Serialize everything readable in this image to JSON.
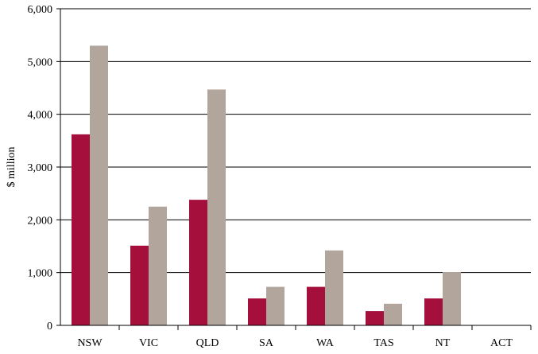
{
  "chart_data": {
    "type": "bar",
    "title": "",
    "xlabel": "",
    "ylabel": "$ million",
    "ylim": [
      0,
      6000
    ],
    "yticks": [
      0,
      1000,
      2000,
      3000,
      4000,
      5000,
      6000
    ],
    "ytick_labels": [
      "0",
      "1,000",
      "2,000",
      "3,000",
      "4,000",
      "5,000",
      "6,000"
    ],
    "grid": true,
    "legend": "none",
    "categories": [
      "NSW",
      "VIC",
      "QLD",
      "SA",
      "WA",
      "TAS",
      "NT",
      "ACT"
    ],
    "series": [
      {
        "color": "#a50f3c",
        "values": [
          3620,
          1510,
          2380,
          510,
          730,
          270,
          510,
          0
        ]
      },
      {
        "color": "#b1a59c",
        "values": [
          5300,
          2250,
          4470,
          730,
          1420,
          410,
          1010,
          0
        ]
      }
    ]
  }
}
